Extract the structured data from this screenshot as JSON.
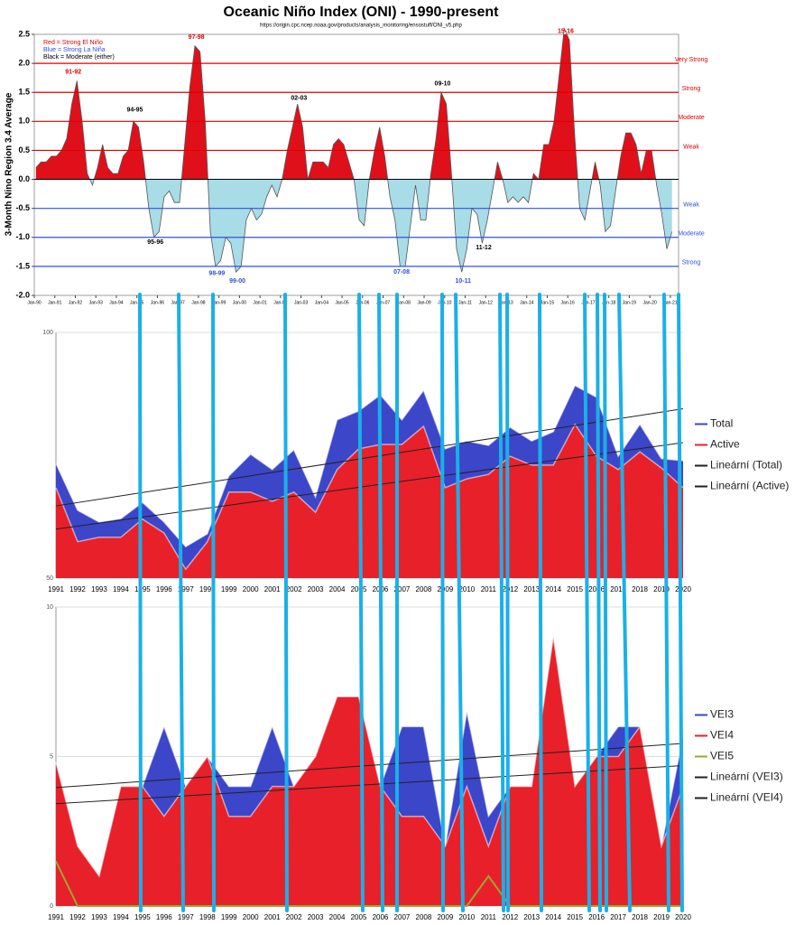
{
  "chart_data": [
    {
      "type": "area",
      "title": "Oceanic Niño Index (ONI) - 1990-present",
      "subtitle": "https://origin.cpc.ncep.noaa.gov/products/analysis_monitoring/ensostuff/ONI_v5.php",
      "y_label": "3-Month Nino Region 3.4 Average",
      "legend_notes": [
        {
          "text": "Red = Strong  El Niño",
          "color": "#e00000"
        },
        {
          "text": "Blue = Strong  La Niña",
          "color": "#3050e0"
        },
        {
          "text": "Black = Moderate  (either)",
          "color": "#000000"
        }
      ],
      "xlim": [
        1990,
        2021.4
      ],
      "ylim": [
        -2,
        2.5
      ],
      "yticks": [
        {
          "value": -2,
          "label": "-2.0"
        },
        {
          "value": -1.5,
          "label": "-1.5"
        },
        {
          "value": -1,
          "label": "-1.0"
        },
        {
          "value": -0.5,
          "label": "-0.5"
        },
        {
          "value": 0,
          "label": "0.0"
        },
        {
          "value": 0.5,
          "label": "0.5"
        },
        {
          "value": 1,
          "label": "1.0"
        },
        {
          "value": 1.5,
          "label": "1.5"
        },
        {
          "value": 2,
          "label": "2.0"
        },
        {
          "value": 2.5,
          "label": "2.5"
        }
      ],
      "xticks": [
        {
          "value": 1990,
          "label": "Jan-90"
        },
        {
          "value": 1991,
          "label": "Jan-91"
        },
        {
          "value": 1992,
          "label": "Jan-92"
        },
        {
          "value": 1993,
          "label": "Jan-93"
        },
        {
          "value": 1994,
          "label": "Jan-94"
        },
        {
          "value": 1995,
          "label": "Jan-95"
        },
        {
          "value": 1996,
          "label": "Jan-96"
        },
        {
          "value": 1997,
          "label": "Jan-97"
        },
        {
          "value": 1998,
          "label": "Jan-98"
        },
        {
          "value": 1999,
          "label": "Jan-99"
        },
        {
          "value": 2000,
          "label": "Jan-00"
        },
        {
          "value": 2001,
          "label": "Jan-01"
        },
        {
          "value": 2002,
          "label": "Jan-02"
        },
        {
          "value": 2003,
          "label": "Jan-03"
        },
        {
          "value": 2004,
          "label": "Jan-04"
        },
        {
          "value": 2005,
          "label": "Jan-05"
        },
        {
          "value": 2006,
          "label": "Jan-06"
        },
        {
          "value": 2007,
          "label": "Jan-07"
        },
        {
          "value": 2008,
          "label": "Jan-08"
        },
        {
          "value": 2009,
          "label": "Jan-09"
        },
        {
          "value": 2010,
          "label": "Jan-10"
        },
        {
          "value": 2011,
          "label": "Jan-11"
        },
        {
          "value": 2012,
          "label": "Jan-12"
        },
        {
          "value": 2013,
          "label": "Jan-13"
        },
        {
          "value": 2014,
          "label": "Jan-14"
        },
        {
          "value": 2015,
          "label": "Jan-15"
        },
        {
          "value": 2016,
          "label": "Jan-16"
        },
        {
          "value": 2017,
          "label": "Jan-17"
        },
        {
          "value": 2018,
          "label": "Jan-18"
        },
        {
          "value": 2019,
          "label": "Jan-19"
        },
        {
          "value": 2020,
          "label": "Jan-20"
        },
        {
          "value": 2021,
          "label": "Jan-21"
        }
      ],
      "thresholds": [
        {
          "value": 2,
          "label": "Very Strong",
          "color": "#e00000"
        },
        {
          "value": 1.5,
          "label": "Strong",
          "color": "#e00000"
        },
        {
          "value": 1,
          "label": "Moderate",
          "color": "#e00000"
        },
        {
          "value": 0.5,
          "label": "Weak",
          "color": "#e00000"
        },
        {
          "value": -0.5,
          "label": "Weak",
          "color": "#3050e0"
        },
        {
          "value": -1,
          "label": "Moderate",
          "color": "#3050e0"
        },
        {
          "value": -1.5,
          "label": "Strong",
          "color": "#3050e0"
        }
      ],
      "positive_color": "#e0101a",
      "negative_color": "#a8dce6",
      "x": [
        1990.08,
        1990.33,
        1990.58,
        1990.83,
        1991.08,
        1991.33,
        1991.58,
        1991.83,
        1992.08,
        1992.33,
        1992.58,
        1992.83,
        1993.08,
        1993.33,
        1993.58,
        1993.83,
        1994.08,
        1994.33,
        1994.58,
        1994.83,
        1995.08,
        1995.33,
        1995.58,
        1995.83,
        1996.08,
        1996.33,
        1996.58,
        1996.83,
        1997.08,
        1997.33,
        1997.58,
        1997.83,
        1998.08,
        1998.33,
        1998.58,
        1998.83,
        1999.08,
        1999.33,
        1999.58,
        1999.83,
        2000.08,
        2000.33,
        2000.58,
        2000.83,
        2001.08,
        2001.33,
        2001.58,
        2001.83,
        2002.08,
        2002.33,
        2002.58,
        2002.83,
        2003.08,
        2003.33,
        2003.58,
        2003.83,
        2004.08,
        2004.33,
        2004.58,
        2004.83,
        2005.08,
        2005.33,
        2005.58,
        2005.83,
        2006.08,
        2006.33,
        2006.58,
        2006.83,
        2007.08,
        2007.33,
        2007.58,
        2007.83,
        2008.08,
        2008.33,
        2008.58,
        2008.83,
        2009.08,
        2009.33,
        2009.58,
        2009.83,
        2010.08,
        2010.33,
        2010.58,
        2010.83,
        2011.08,
        2011.33,
        2011.58,
        2011.83,
        2012.08,
        2012.33,
        2012.58,
        2012.83,
        2013.08,
        2013.33,
        2013.58,
        2013.83,
        2014.08,
        2014.33,
        2014.58,
        2014.83,
        2015.08,
        2015.33,
        2015.58,
        2015.83,
        2016.08,
        2016.33,
        2016.58,
        2016.83,
        2017.08,
        2017.33,
        2017.58,
        2017.83,
        2018.08,
        2018.33,
        2018.58,
        2018.83,
        2019.08,
        2019.33,
        2019.58,
        2019.83,
        2020.08,
        2020.33,
        2020.58,
        2020.83,
        2021.08
      ],
      "values": [
        0.2,
        0.3,
        0.3,
        0.4,
        0.4,
        0.5,
        0.7,
        1.3,
        1.7,
        1.0,
        0.1,
        -0.1,
        0.2,
        0.6,
        0.2,
        0.1,
        0.1,
        0.4,
        0.5,
        1.0,
        0.9,
        0.3,
        -0.5,
        -1.0,
        -0.9,
        -0.3,
        -0.2,
        -0.4,
        -0.4,
        0.6,
        1.6,
        2.3,
        2.2,
        1.0,
        -0.9,
        -1.5,
        -1.4,
        -1.0,
        -1.1,
        -1.6,
        -1.5,
        -0.7,
        -0.5,
        -0.7,
        -0.6,
        -0.3,
        -0.1,
        -0.3,
        0.0,
        0.5,
        0.9,
        1.3,
        0.9,
        0.0,
        0.3,
        0.3,
        0.3,
        0.2,
        0.6,
        0.7,
        0.6,
        0.3,
        0.0,
        -0.7,
        -0.8,
        0.0,
        0.5,
        0.9,
        0.4,
        -0.3,
        -0.7,
        -1.5,
        -1.5,
        -0.8,
        -0.1,
        -0.7,
        -0.7,
        0.1,
        0.7,
        1.5,
        1.3,
        0.1,
        -1.2,
        -1.6,
        -1.2,
        -0.5,
        -0.6,
        -1.1,
        -0.7,
        -0.2,
        0.3,
        0.0,
        -0.4,
        -0.3,
        -0.4,
        -0.3,
        -0.4,
        0.1,
        0.0,
        0.6,
        0.6,
        1.0,
        1.8,
        2.6,
        2.4,
        0.8,
        -0.5,
        -0.7,
        -0.2,
        0.3,
        -0.1,
        -0.9,
        -0.8,
        -0.2,
        0.4,
        0.8,
        0.8,
        0.6,
        0.1,
        0.5,
        0.5,
        -0.1,
        -0.6,
        -1.2,
        -0.9
      ],
      "annotations": [
        {
          "text": "91-92",
          "x": 1991.9,
          "y": 1.85,
          "color": "#e00000"
        },
        {
          "text": "94-95",
          "x": 1994.9,
          "y": 1.2,
          "color": "#000000"
        },
        {
          "text": "95-96",
          "x": 1995.9,
          "y": -1.08,
          "color": "#000000"
        },
        {
          "text": "97-98",
          "x": 1997.9,
          "y": 2.45,
          "color": "#e00000"
        },
        {
          "text": "98-99",
          "x": 1998.9,
          "y": -1.62,
          "color": "#3050e0"
        },
        {
          "text": "99-00",
          "x": 1999.9,
          "y": -1.75,
          "color": "#3050e0"
        },
        {
          "text": "02-03",
          "x": 2002.9,
          "y": 1.4,
          "color": "#000000"
        },
        {
          "text": "07-08",
          "x": 2007.9,
          "y": -1.6,
          "color": "#3050e0"
        },
        {
          "text": "09-10",
          "x": 2009.9,
          "y": 1.65,
          "color": "#000000"
        },
        {
          "text": "10-11",
          "x": 2010.9,
          "y": -1.75,
          "color": "#3050e0"
        },
        {
          "text": "11-12",
          "x": 2011.9,
          "y": -1.18,
          "color": "#000000"
        },
        {
          "text": "15-16",
          "x": 2015.9,
          "y": 2.55,
          "color": "#e00000"
        }
      ]
    },
    {
      "type": "area",
      "ylim": [
        50,
        100
      ],
      "yticks": [
        50,
        100
      ],
      "categories": [
        "1991",
        "1992",
        "1993",
        "1994",
        "1995",
        "1996",
        "1997",
        "1998",
        "1999",
        "2000",
        "2001",
        "2002",
        "2003",
        "2004",
        "2005",
        "2006",
        "2007",
        "2008",
        "2009",
        "2010",
        "2011",
        "2012",
        "2013",
        "2014",
        "2015",
        "2016",
        "2017",
        "2018",
        "2019",
        "2020"
      ],
      "series": [
        {
          "name": "Total",
          "color": "#3c46c8",
          "values": [
            73.3,
            63.8,
            61.4,
            62.1,
            65.4,
            61.4,
            56.4,
            59,
            70.8,
            75.2,
            72.1,
            76.1,
            66.5,
            82.2,
            84,
            87.3,
            82.2,
            88.2,
            76.3,
            77.9,
            77,
            80.7,
            77.9,
            79.8,
            89.2,
            86.8,
            74.8,
            81.3,
            74.3,
            73.9
          ]
        },
        {
          "name": "Active",
          "color": "#e8202a",
          "values": [
            68.4,
            57.4,
            58.3,
            58.3,
            62,
            59.2,
            51.8,
            57.4,
            67.5,
            67.5,
            65.6,
            67.5,
            63.4,
            72.1,
            76.3,
            77.2,
            77.2,
            80.9,
            68.4,
            70.2,
            71.1,
            74.8,
            73,
            73,
            81.3,
            74.8,
            72.1,
            75.7,
            72.4,
            68.4
          ]
        }
      ],
      "trendlines": [
        {
          "name": "Lineární (Total)",
          "color": "#222222"
        },
        {
          "name": "Lineární (Active)",
          "color": "#222222"
        }
      ]
    },
    {
      "type": "area",
      "ylim": [
        0,
        10
      ],
      "yticks": [
        0,
        5,
        10
      ],
      "categories": [
        "1991",
        "1992",
        "1993",
        "1994",
        "1995",
        "1996",
        "1997",
        "1998",
        "1999",
        "2000",
        "2001",
        "2002",
        "2003",
        "2004",
        "2005",
        "2006",
        "2007",
        "2008",
        "2009",
        "2010",
        "2011",
        "2012",
        "2013",
        "2014",
        "2015",
        "2016",
        "2017",
        "2018",
        "2019",
        "2020"
      ],
      "series": [
        {
          "name": "VEI3",
          "color": "#3c46c8",
          "values": [
            4.8,
            2,
            1,
            4,
            4,
            6,
            4,
            5,
            4,
            4,
            6,
            4,
            5,
            7,
            7,
            4,
            6,
            6,
            2,
            6.5,
            3,
            4,
            4,
            9,
            4,
            5,
            6,
            6,
            2,
            5.7
          ]
        },
        {
          "name": "VEI4",
          "color": "#e8202a",
          "values": [
            4.8,
            2,
            1,
            4,
            4,
            3,
            4,
            5,
            3,
            3,
            4,
            4,
            5,
            7,
            7,
            4,
            3,
            3,
            2,
            4,
            2,
            4,
            4,
            9,
            4,
            5,
            5,
            6,
            2,
            4
          ]
        },
        {
          "name": "VEI5",
          "color": "#9aa832",
          "line": true,
          "values": [
            1.5,
            0,
            0,
            0,
            0,
            0,
            0,
            0,
            0,
            0,
            0,
            0,
            0,
            0,
            0,
            0,
            0,
            0,
            0,
            0,
            1,
            0,
            0,
            0,
            0,
            0,
            0,
            0,
            0,
            0
          ]
        }
      ],
      "trendlines": [
        {
          "name": "Lineární (VEI3)",
          "color": "#222222"
        },
        {
          "name": "Lineární (VEI4)",
          "color": "#222222"
        }
      ]
    }
  ]
}
